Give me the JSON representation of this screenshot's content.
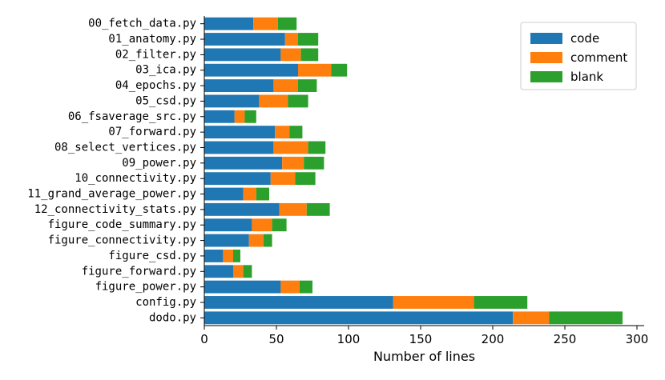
{
  "chart_data": {
    "type": "bar",
    "orientation": "horizontal",
    "stacked": true,
    "categories": [
      "00_fetch_data.py",
      "01_anatomy.py",
      "02_filter.py",
      "03_ica.py",
      "04_epochs.py",
      "05_csd.py",
      "06_fsaverage_src.py",
      "07_forward.py",
      "08_select_vertices.py",
      "09_power.py",
      "10_connectivity.py",
      "11_grand_average_power.py",
      "12_connectivity_stats.py",
      "figure_code_summary.py",
      "figure_connectivity.py",
      "figure_csd.py",
      "figure_forward.py",
      "figure_power.py",
      "config.py",
      "dodo.py"
    ],
    "series": [
      {
        "name": "code",
        "color": "#1f77b4",
        "values": [
          34,
          56,
          53,
          65,
          48,
          38,
          21,
          49,
          48,
          54,
          46,
          27,
          52,
          33,
          31,
          13,
          20,
          53,
          131,
          214
        ]
      },
      {
        "name": "comment",
        "color": "#ff7f0e",
        "values": [
          17,
          9,
          14,
          23,
          17,
          20,
          7,
          10,
          24,
          15,
          17,
          9,
          19,
          14,
          10,
          7,
          7,
          13,
          56,
          25
        ]
      },
      {
        "name": "blank",
        "color": "#2ca02c",
        "values": [
          13,
          14,
          12,
          11,
          13,
          14,
          8,
          9,
          12,
          14,
          14,
          9,
          16,
          10,
          6,
          5,
          6,
          9,
          37,
          51
        ]
      }
    ],
    "xlabel": "Number of lines",
    "ylabel": "",
    "xlim": [
      0,
      305
    ],
    "xticks": [
      0,
      50,
      100,
      150,
      200,
      250,
      300
    ],
    "grid": false,
    "legend": "top-right"
  }
}
